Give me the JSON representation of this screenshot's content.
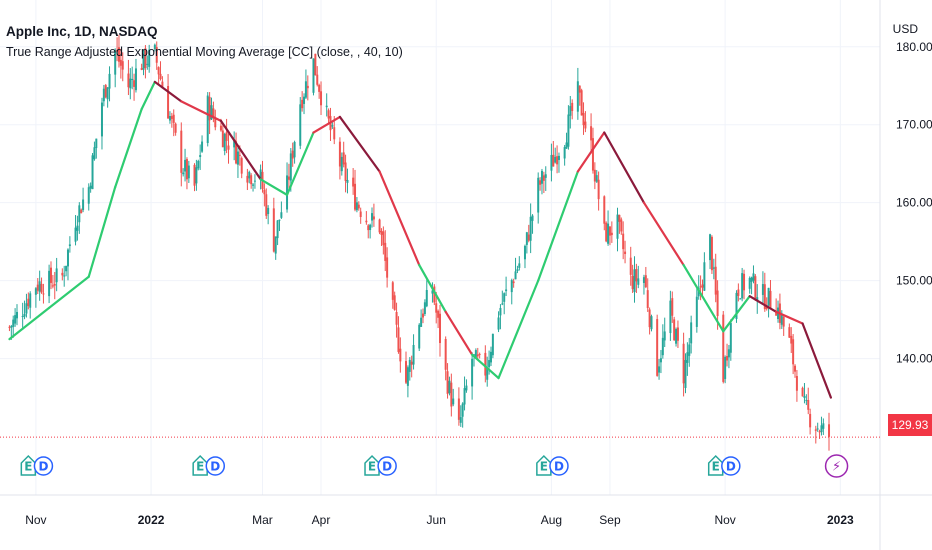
{
  "header": {
    "symbol_line": "Apple Inc, 1D, NASDAQ",
    "indicator_line": "True Range Adjusted Exponential Moving Average [CC] (close, , 40, 10)",
    "currency": "USD"
  },
  "last_price": "129.93",
  "colors": {
    "up": "#26a69a",
    "down": "#ef5350",
    "ma_up": "#2ecc71",
    "ma_down_light": "#e0384a",
    "ma_down_dark": "#8b1a3b",
    "grid": "#f0f3fa",
    "last_price": "#f23645",
    "earnings": "#26a69a",
    "dividend": "#2962ff",
    "split": "#9c27b0"
  },
  "chart_data": {
    "type": "candlestick",
    "title": "Apple Inc, 1D, NASDAQ",
    "y_axis": {
      "ticks": [
        "180.00",
        "170.00",
        "160.00",
        "150.00",
        "140.00"
      ],
      "ylim": [
        122.5,
        186.0
      ],
      "unit": "USD",
      "position": "right"
    },
    "x_axis": {
      "ticks": [
        {
          "label": "Nov",
          "bold": false
        },
        {
          "label": "2022",
          "bold": true
        },
        {
          "label": "Mar",
          "bold": false
        },
        {
          "label": "Apr",
          "bold": false
        },
        {
          "label": "Jun",
          "bold": false
        },
        {
          "label": "Aug",
          "bold": false
        },
        {
          "label": "Sep",
          "bold": false
        },
        {
          "label": "Nov",
          "bold": false
        },
        {
          "label": "2023",
          "bold": true
        }
      ]
    },
    "close_path": [
      [
        "2021-10-18",
        144.0
      ],
      [
        "2021-10-25",
        146.5
      ],
      [
        "2021-11-01",
        149.5
      ],
      [
        "2021-11-08",
        149.8
      ],
      [
        "2021-11-15",
        150.5
      ],
      [
        "2021-11-22",
        158.0
      ],
      [
        "2021-11-29",
        162.0
      ],
      [
        "2021-12-06",
        173.0
      ],
      [
        "2021-12-13",
        179.5
      ],
      [
        "2021-12-20",
        175.0
      ],
      [
        "2021-12-27",
        178.0
      ],
      [
        "2022-01-03",
        179.0
      ],
      [
        "2022-01-10",
        172.0
      ],
      [
        "2022-01-17",
        165.0
      ],
      [
        "2022-01-24",
        162.0
      ],
      [
        "2022-01-31",
        172.5
      ],
      [
        "2022-02-07",
        169.0
      ],
      [
        "2022-02-14",
        167.0
      ],
      [
        "2022-02-21",
        164.0
      ],
      [
        "2022-02-28",
        163.0
      ],
      [
        "2022-03-07",
        155.0
      ],
      [
        "2022-03-14",
        162.0
      ],
      [
        "2022-03-21",
        173.0
      ],
      [
        "2022-03-28",
        178.0
      ],
      [
        "2022-04-04",
        171.0
      ],
      [
        "2022-04-11",
        165.0
      ],
      [
        "2022-04-18",
        161.0
      ],
      [
        "2022-04-25",
        158.0
      ],
      [
        "2022-05-02",
        157.0
      ],
      [
        "2022-05-09",
        146.0
      ],
      [
        "2022-05-16",
        137.0
      ],
      [
        "2022-05-23",
        145.0
      ],
      [
        "2022-05-30",
        149.0
      ],
      [
        "2022-06-06",
        138.0
      ],
      [
        "2022-06-13",
        131.0
      ],
      [
        "2022-06-20",
        140.0
      ],
      [
        "2022-06-27",
        138.5
      ],
      [
        "2022-07-04",
        146.0
      ],
      [
        "2022-07-11",
        150.0
      ],
      [
        "2022-07-18",
        154.0
      ],
      [
        "2022-07-25",
        162.0
      ],
      [
        "2022-08-01",
        165.0
      ],
      [
        "2022-08-08",
        168.5
      ],
      [
        "2022-08-15",
        174.0
      ],
      [
        "2022-08-22",
        167.0
      ],
      [
        "2022-08-29",
        156.0
      ],
      [
        "2022-09-05",
        157.0
      ],
      [
        "2022-09-12",
        150.0
      ],
      [
        "2022-09-19",
        150.5
      ],
      [
        "2022-09-26",
        139.0
      ],
      [
        "2022-10-03",
        146.0
      ],
      [
        "2022-10-10",
        138.0
      ],
      [
        "2022-10-17",
        147.0
      ],
      [
        "2022-10-24",
        155.0
      ],
      [
        "2022-10-31",
        138.0
      ],
      [
        "2022-11-07",
        149.0
      ],
      [
        "2022-11-14",
        150.0
      ],
      [
        "2022-11-21",
        148.0
      ],
      [
        "2022-11-28",
        147.0
      ],
      [
        "2022-12-05",
        142.0
      ],
      [
        "2022-12-12",
        134.0
      ],
      [
        "2022-12-19",
        131.5
      ],
      [
        "2022-12-27",
        129.93
      ]
    ],
    "indicator": {
      "name": "True Range Adjusted Exponential Moving Average [CC]",
      "points": [
        [
          "2021-10-18",
          142.5,
          "up"
        ],
        [
          "2021-11-08",
          146.5,
          "up"
        ],
        [
          "2021-11-29",
          150.5,
          "up"
        ],
        [
          "2021-12-13",
          162.0,
          "up"
        ],
        [
          "2021-12-27",
          172.0,
          "up"
        ],
        [
          "2022-01-03",
          175.5,
          "up"
        ],
        [
          "2022-01-17",
          173.0,
          "down"
        ],
        [
          "2022-02-07",
          170.5,
          "down"
        ],
        [
          "2022-02-28",
          163.0,
          "down"
        ],
        [
          "2022-03-14",
          161.0,
          "up"
        ],
        [
          "2022-03-28",
          169.0,
          "up"
        ],
        [
          "2022-04-11",
          171.0,
          "down"
        ],
        [
          "2022-05-02",
          164.0,
          "down"
        ],
        [
          "2022-05-23",
          152.0,
          "down"
        ],
        [
          "2022-06-06",
          146.0,
          "up"
        ],
        [
          "2022-06-20",
          140.5,
          "down"
        ],
        [
          "2022-07-04",
          137.5,
          "up"
        ],
        [
          "2022-07-25",
          150.0,
          "up"
        ],
        [
          "2022-08-15",
          164.0,
          "up"
        ],
        [
          "2022-08-29",
          169.0,
          "down"
        ],
        [
          "2022-09-19",
          160.0,
          "down"
        ],
        [
          "2022-10-10",
          152.0,
          "down"
        ],
        [
          "2022-10-31",
          143.5,
          "up"
        ],
        [
          "2022-11-14",
          148.0,
          "up"
        ],
        [
          "2022-11-28",
          146.0,
          "down"
        ],
        [
          "2022-12-12",
          144.5,
          "down"
        ],
        [
          "2022-12-27",
          135.0,
          "down"
        ]
      ]
    },
    "event_markers": [
      {
        "date": "2021-10-28",
        "type": "earnings",
        "letter": "E"
      },
      {
        "date": "2021-11-05",
        "type": "dividend",
        "letter": "D"
      },
      {
        "date": "2022-01-27",
        "type": "earnings",
        "letter": "E"
      },
      {
        "date": "2022-02-04",
        "type": "dividend",
        "letter": "D"
      },
      {
        "date": "2022-04-28",
        "type": "earnings",
        "letter": "E"
      },
      {
        "date": "2022-05-06",
        "type": "dividend",
        "letter": "D"
      },
      {
        "date": "2022-07-28",
        "type": "earnings",
        "letter": "E"
      },
      {
        "date": "2022-08-05",
        "type": "dividend",
        "letter": "D"
      },
      {
        "date": "2022-10-27",
        "type": "earnings",
        "letter": "E"
      },
      {
        "date": "2022-11-04",
        "type": "dividend",
        "letter": "D"
      },
      {
        "date": "2022-12-30",
        "type": "split",
        "letter": "⚡"
      }
    ],
    "grid": true,
    "legend_position": "top-left"
  }
}
